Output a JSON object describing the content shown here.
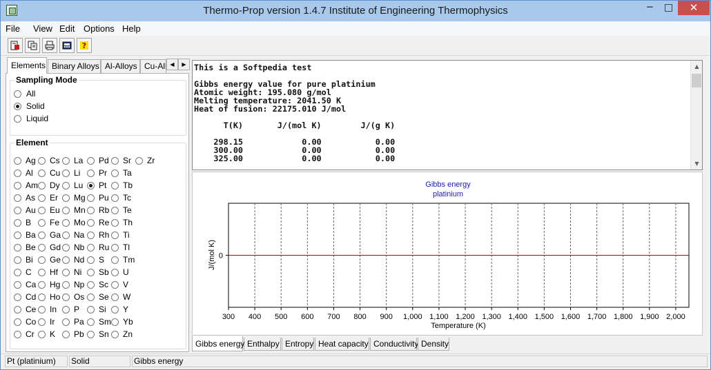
{
  "window": {
    "title": "Thermo-Prop version 1.4.7  Institute of Engineering Thermophysics"
  },
  "titlebar": {
    "minimize": "─",
    "maximize": "□",
    "close": "✕"
  },
  "menu": [
    "File",
    "View",
    "Edit",
    "Options",
    "Help"
  ],
  "toolbar_icons": [
    "new-document-icon",
    "copy-icon",
    "print-icon",
    "calculator-icon",
    "help-icon"
  ],
  "left_tabs": [
    "Elements",
    "Binary Alloys",
    "Al-Alloys",
    "Cu-Allo"
  ],
  "sampling": {
    "label": "Sampling Mode",
    "options": [
      "All",
      "Solid",
      "Liquid"
    ],
    "selected": "Solid"
  },
  "element_group": {
    "label": "Element",
    "selected": "Pt",
    "grid": [
      [
        "Ag",
        "Cs",
        "La",
        "Pd",
        "Sr",
        "Zr"
      ],
      [
        "Al",
        "Cu",
        "Li",
        "Pr",
        "Ta",
        ""
      ],
      [
        "Am",
        "Dy",
        "Lu",
        "Pt",
        "Tb",
        ""
      ],
      [
        "As",
        "Er",
        "Mg",
        "Pu",
        "Tc",
        ""
      ],
      [
        "Au",
        "Eu",
        "Mn",
        "Rb",
        "Te",
        ""
      ],
      [
        "B",
        "Fe",
        "Mo",
        "Re",
        "Th",
        ""
      ],
      [
        "Ba",
        "Ga",
        "Na",
        "Rh",
        "Ti",
        ""
      ],
      [
        "Be",
        "Gd",
        "Nb",
        "Ru",
        "Tl",
        ""
      ],
      [
        "Bi",
        "Ge",
        "Nd",
        "S",
        "Tm",
        ""
      ],
      [
        "C",
        "Hf",
        "Ni",
        "Sb",
        "U",
        ""
      ],
      [
        "Ca",
        "Hg",
        "Np",
        "Sc",
        "V",
        ""
      ],
      [
        "Cd",
        "Ho",
        "Os",
        "Se",
        "W",
        ""
      ],
      [
        "Ce",
        "In",
        "P",
        "Si",
        "Y",
        ""
      ],
      [
        "Co",
        "Ir",
        "Pa",
        "Sm",
        "Yb",
        ""
      ],
      [
        "Cr",
        "K",
        "Pb",
        "Sn",
        "Zn",
        ""
      ]
    ]
  },
  "text_output": {
    "lines": [
      "This is a Softpedia test",
      "",
      "Gibbs energy value for pure platinium",
      "Atomic weight: 195.080 g/mol",
      "Melting temperature: 2041.50 K",
      "Heat of fusion: 22175.010 J/mol",
      "",
      "      T(K)       J/(mol K)        J/(g K)",
      "",
      "    298.15            0.00           0.00",
      "    300.00            0.00           0.00",
      "    325.00            0.00           0.00"
    ]
  },
  "chart_data": {
    "type": "line",
    "title": "Gibbs energy",
    "subtitle": "platinium",
    "xlabel": "Temperature (K)",
    "ylabel": "J/(mol K)",
    "xlim": [
      300,
      2050
    ],
    "x_ticks": [
      "300",
      "400",
      "500",
      "600",
      "700",
      "800",
      "900",
      "1,000",
      "1,100",
      "1,200",
      "1,300",
      "1,400",
      "1,500",
      "1,600",
      "1,700",
      "1,800",
      "1,900",
      "2,000"
    ],
    "y_ticks": [
      "0"
    ],
    "grid": "vertical-dashed",
    "series": [
      {
        "color": "#c00000",
        "x": [
          300,
          2041.5
        ],
        "y": [
          0,
          0
        ]
      }
    ],
    "title_color": "#1a1aa8"
  },
  "bottom_tabs": [
    "Gibbs energy",
    "Enthalpy",
    "Entropy",
    "Heat capacity",
    "Conductivity",
    "Density"
  ],
  "status": [
    "Pt (platinium)",
    "Solid",
    "Gibbs energy"
  ]
}
